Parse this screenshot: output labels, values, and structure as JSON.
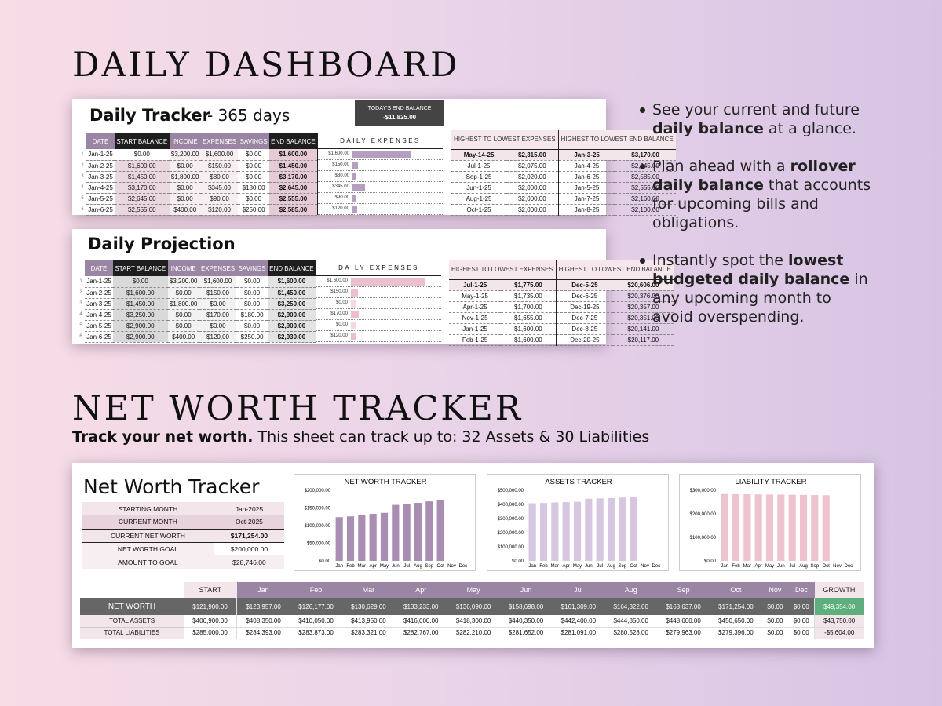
{
  "daily_heading": "DAILY DASHBOARD",
  "tracker": {
    "title": "Daily Tracker",
    "subtitle": "- 365 days",
    "today_label": "TODAY'S END BALANCE",
    "today_value": "-$11,825.00",
    "headers": [
      "DATE",
      "START BALANCE",
      "INCOME",
      "EXPENSES",
      "SAVINGS",
      "END BALANCE"
    ],
    "expenses_header": "DAILY EXPENSES",
    "rows": [
      {
        "n": "1",
        "date": "Jan-1-25",
        "start": "$0.00",
        "income": "$3,200.00",
        "expenses": "$1,600.00",
        "savings": "$0.00",
        "end": "$1,600.00",
        "exp_label": "$1,600.00",
        "exp": 1600
      },
      {
        "n": "2",
        "date": "Jan-2-25",
        "start": "$1,600.00",
        "income": "$0.00",
        "expenses": "$150.00",
        "savings": "$0.00",
        "end": "$1,450.00",
        "exp_label": "$150.00",
        "exp": 150
      },
      {
        "n": "3",
        "date": "Jan-3-25",
        "start": "$1,450.00",
        "income": "$1,800.00",
        "expenses": "$80.00",
        "savings": "$0.00",
        "end": "$3,170.00",
        "exp_label": "$80.00",
        "exp": 80
      },
      {
        "n": "4",
        "date": "Jan-4-25",
        "start": "$3,170.00",
        "income": "$0.00",
        "expenses": "$345.00",
        "savings": "$180.00",
        "end": "$2,645.00",
        "exp_label": "$345.00",
        "exp": 345
      },
      {
        "n": "5",
        "date": "Jan-5-25",
        "start": "$2,645.00",
        "income": "$0.00",
        "expenses": "$90.00",
        "savings": "$0.00",
        "end": "$2,555.00",
        "exp_label": "$90.00",
        "exp": 90
      },
      {
        "n": "6",
        "date": "Jan-6-25",
        "start": "$2,555.00",
        "income": "$400.00",
        "expenses": "$120.00",
        "savings": "$250.00",
        "end": "$2,585.00",
        "exp_label": "$120.00",
        "exp": 120
      }
    ],
    "rank_headers": [
      "HIGHEST TO LOWEST EXPENSES",
      "HIGHEST TO LOWEST END BALANCE"
    ],
    "rank_rows": [
      [
        "May-14-25",
        "$2,315.00",
        "Jan-3-25",
        "$3,170.00"
      ],
      [
        "Jul-1-25",
        "$2,075.00",
        "Jan-4-25",
        "$2,645.00"
      ],
      [
        "Sep-1-25",
        "$2,020.00",
        "Jan-6-25",
        "$2,585.00"
      ],
      [
        "Jun-1-25",
        "$2,000.00",
        "Jan-5-25",
        "$2,555.00"
      ],
      [
        "Aug-1-25",
        "$2,000.00",
        "Jan-7-25",
        "$2,160.00"
      ],
      [
        "Oct-1-25",
        "$2,000.00",
        "Jan-8-25",
        "$2,100.00"
      ]
    ]
  },
  "projection": {
    "title": "Daily Projection",
    "headers": [
      "DATE",
      "START BALANCE",
      "INCOME",
      "EXPENSES",
      "SAVINGS",
      "END BALANCE"
    ],
    "expenses_header": "DAILY EXPENSES",
    "rows": [
      {
        "n": "1",
        "date": "Jan-1-25",
        "start": "$0.00",
        "income": "$3,200.00",
        "expenses": "$1,600.00",
        "savings": "$0.00",
        "end": "$1,600.00",
        "exp_label": "$1,600.00",
        "exp": 1600
      },
      {
        "n": "2",
        "date": "Jan-2-25",
        "start": "$1,600.00",
        "income": "$0.00",
        "expenses": "$150.00",
        "savings": "$0.00",
        "end": "$1,450.00",
        "exp_label": "$150.00",
        "exp": 150
      },
      {
        "n": "3",
        "date": "Jan-3-25",
        "start": "$1,450.00",
        "income": "$1,800.00",
        "expenses": "$0.00",
        "savings": "$0.00",
        "end": "$3,250.00",
        "exp_label": "$0.00",
        "exp": 0
      },
      {
        "n": "4",
        "date": "Jan-4-25",
        "start": "$3,250.00",
        "income": "$0.00",
        "expenses": "$170.00",
        "savings": "$180.00",
        "end": "$2,900.00",
        "exp_label": "$170.00",
        "exp": 170
      },
      {
        "n": "5",
        "date": "Jan-5-25",
        "start": "$2,900.00",
        "income": "$0.00",
        "expenses": "$0.00",
        "savings": "$0.00",
        "end": "$2,900.00",
        "exp_label": "$0.00",
        "exp": 0
      },
      {
        "n": "6",
        "date": "Jan-6-25",
        "start": "$2,900.00",
        "income": "$400.00",
        "expenses": "$120.00",
        "savings": "$250.00",
        "end": "$2,930.00",
        "exp_label": "$120.00",
        "exp": 120
      }
    ],
    "rank_headers": [
      "HIGHEST TO LOWEST EXPENSES",
      "HIGHEST TO LOWEST END BALANCE"
    ],
    "rank_rows": [
      [
        "Jul-1-25",
        "$1,775.00",
        "Dec-5-25",
        "$20,606.00"
      ],
      [
        "May-1-25",
        "$1,735.00",
        "Dec-6-25",
        "$20,376.00"
      ],
      [
        "Apr-1-25",
        "$1,700.00",
        "Dec-19-25",
        "$20,357.00"
      ],
      [
        "Nov-1-25",
        "$1,655.00",
        "Dec-7-25",
        "$20,351.00"
      ],
      [
        "Jan-1-25",
        "$1,600.00",
        "Dec-8-25",
        "$20,141.00"
      ],
      [
        "Feb-1-25",
        "$1,600.00",
        "Dec-20-25",
        "$20,117.00"
      ]
    ]
  },
  "bullets": [
    {
      "pre": "See your current and future ",
      "bold": "daily balance",
      "post": " at a glance."
    },
    {
      "pre": "Plan ahead with a ",
      "bold": "rollover daily balance",
      "post": " that accounts for upcoming bills and obligations."
    },
    {
      "pre": "Instantly spot the ",
      "bold": "lowest budgeted daily balance",
      "post": " in any upcoming month to avoid overspending."
    }
  ],
  "networth_heading": "NET WORTH TRACKER",
  "networth_sub_bold": "Track your net worth.",
  "networth_sub_rest": " This sheet can track up to: 32 Assets & 30 Liabilities",
  "nw": {
    "title": "Net Worth Tracker",
    "summary": [
      {
        "label": "STARTING MONTH",
        "value": "Jan-2025"
      },
      {
        "label": "CURRENT MONTH",
        "value": "Oct-2025"
      },
      {
        "label": "CURRENT NET WORTH",
        "value": "$171,254.00"
      },
      {
        "label": "NET WORTH GOAL",
        "value": "$200,000.00"
      },
      {
        "label": "AMOUNT TO GOAL",
        "value": "$28,746.00"
      }
    ],
    "table_headers": [
      "START",
      "Jan",
      "Feb",
      "Mar",
      "Apr",
      "May",
      "Jun",
      "Jul",
      "Aug",
      "Sep",
      "Oct",
      "Nov",
      "Dec",
      "GROWTH"
    ],
    "rows": [
      {
        "label": "NET WORTH",
        "cells": [
          "$121,900.00",
          "$123,957.00",
          "$126,177.00",
          "$130,629.00",
          "$133,233.00",
          "$136,090.00",
          "$158,698.00",
          "$161,309.00",
          "$164,322.00",
          "$168,637.00",
          "$171,254.00",
          "$0.00",
          "$0.00",
          "$49,354.00"
        ]
      },
      {
        "label": "TOTAL ASSETS",
        "cells": [
          "$406,900.00",
          "$408,350.00",
          "$410,050.00",
          "$413,950.00",
          "$416,000.00",
          "$418,300.00",
          "$440,350.00",
          "$442,400.00",
          "$444,850.00",
          "$448,600.00",
          "$450,650.00",
          "$0.00",
          "$0.00",
          "$43,750.00"
        ]
      },
      {
        "label": "TOTAL LIABILITIES",
        "cells": [
          "$285,000.00",
          "$284,393.00",
          "$283,873.00",
          "$283,321.00",
          "$282,767.00",
          "$282,210.00",
          "$281,652.00",
          "$281,091.00",
          "$280,528.00",
          "$279,963.00",
          "$279,396.00",
          "$0.00",
          "$0.00",
          "-$5,604.00"
        ]
      }
    ]
  },
  "chart_data": [
    {
      "type": "bar",
      "title": "NET WORTH TRACKER",
      "categories": [
        "Jan",
        "Feb",
        "Mar",
        "Apr",
        "May",
        "Jun",
        "Jul",
        "Aug",
        "Sep",
        "Oct",
        "Nov",
        "Dec"
      ],
      "values": [
        123957,
        126177,
        130629,
        133233,
        136090,
        158698,
        161309,
        164322,
        168637,
        171254,
        0,
        0
      ],
      "ylim": [
        0,
        200000
      ],
      "ticks": [
        "$0.00",
        "$50,000.00",
        "$100,000.00",
        "$150,000.00",
        "$200,000.00"
      ],
      "tick_values": [
        0,
        50000,
        100000,
        150000,
        200000
      ],
      "color": "#a98db3"
    },
    {
      "type": "bar",
      "title": "ASSETS TRACKER",
      "categories": [
        "Jan",
        "Feb",
        "Mar",
        "Apr",
        "May",
        "Jun",
        "Jul",
        "Aug",
        "Sep",
        "Oct",
        "Nov",
        "Dec"
      ],
      "values": [
        408350,
        410050,
        413950,
        416000,
        418300,
        440350,
        442400,
        444850,
        448600,
        450650,
        0,
        0
      ],
      "ylim": [
        0,
        500000
      ],
      "ticks": [
        "$0.00",
        "$100,000.00",
        "$200,000.00",
        "$300,000.00",
        "$400,000.00",
        "$500,000.00"
      ],
      "tick_values": [
        0,
        100000,
        200000,
        300000,
        400000,
        500000
      ],
      "color": "#d6c6e0"
    },
    {
      "type": "bar",
      "title": "LIABILITY TRACKER",
      "categories": [
        "Jan",
        "Feb",
        "Mar",
        "Apr",
        "May",
        "Jun",
        "Jul",
        "Aug",
        "Sep",
        "Oct",
        "Nov",
        "Dec"
      ],
      "values": [
        284393,
        283873,
        283321,
        282767,
        282210,
        281652,
        281091,
        280528,
        279963,
        279396,
        0,
        0
      ],
      "ylim": [
        0,
        300000
      ],
      "ticks": [
        "$0.00",
        "$100,000.00",
        "$200,000.00",
        "$300,000.00"
      ],
      "tick_values": [
        0,
        100000,
        200000,
        300000
      ],
      "color": "#eec3cf"
    }
  ]
}
